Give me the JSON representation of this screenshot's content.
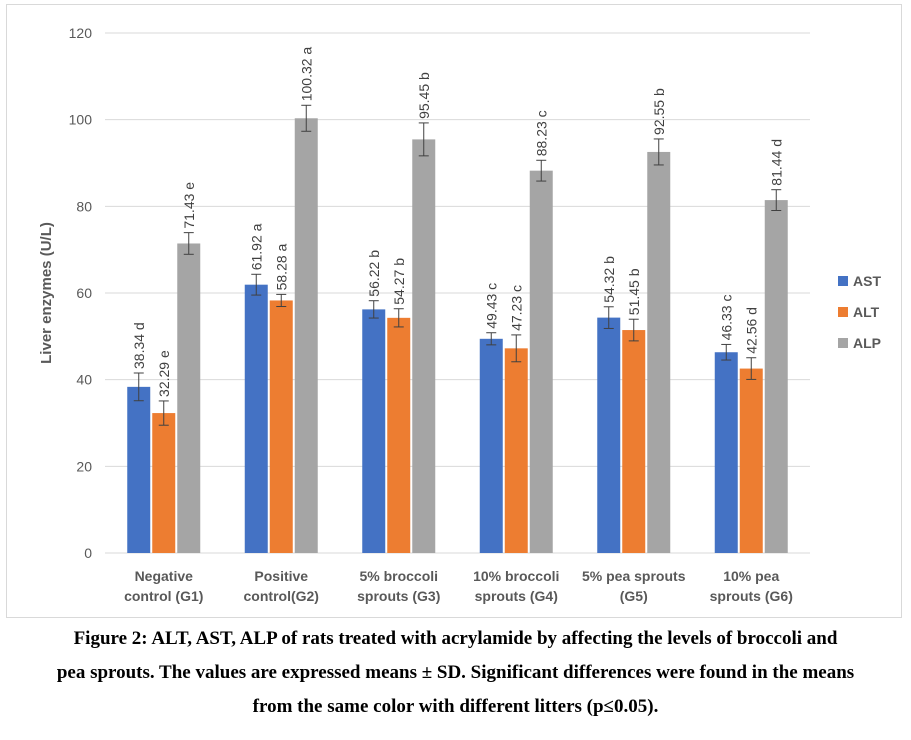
{
  "chart_data": {
    "type": "bar",
    "ylabel": "Liver enzymes (U/L)",
    "xlabel": "",
    "ylim": [
      0,
      120
    ],
    "yticks": [
      0,
      20,
      40,
      60,
      80,
      100,
      120
    ],
    "grid": true,
    "legend_position": "right",
    "categories": [
      [
        "Negative",
        "control (G1)"
      ],
      [
        "Positive",
        "control(G2)"
      ],
      [
        "5% broccoli",
        "sprouts (G3)"
      ],
      [
        "10% broccoli",
        "sprouts (G4)"
      ],
      [
        "5% pea sprouts",
        "(G5)"
      ],
      [
        "10% pea",
        "sprouts (G6)"
      ]
    ],
    "series": [
      {
        "name": "AST",
        "color": "#4472c4",
        "values": [
          38.34,
          61.92,
          56.22,
          49.43,
          54.32,
          46.33
        ],
        "errors": [
          3.2,
          2.4,
          2.0,
          1.4,
          2.5,
          1.8
        ],
        "labels": [
          "38.34 d",
          "61.92 a",
          "56.22 b",
          "49.43 c",
          "54.32 b",
          "46.33 c"
        ]
      },
      {
        "name": "ALT",
        "color": "#ed7d31",
        "values": [
          32.29,
          58.28,
          54.27,
          47.23,
          51.45,
          42.56
        ],
        "errors": [
          2.8,
          1.4,
          2.1,
          3.1,
          2.5,
          2.5
        ],
        "labels": [
          "32.29 e",
          "58.28 a",
          "54.27 b",
          "47.23 c",
          "51.45 b",
          "42.56 d"
        ]
      },
      {
        "name": "ALP",
        "color": "#a5a5a5",
        "values": [
          71.43,
          100.32,
          95.45,
          88.23,
          92.55,
          81.44
        ],
        "errors": [
          2.5,
          3.0,
          3.8,
          2.4,
          3.0,
          2.4
        ],
        "labels": [
          "71.43 e",
          "100.32 a",
          "95.45 b",
          "88.23 c",
          "92.55 b",
          "81.44 d"
        ]
      }
    ]
  },
  "caption": {
    "line1": "Figure 2: ALT, AST, ALP of rats treated with acrylamide by affecting the levels of broccoli and",
    "line2": "pea sprouts. The values are expressed means ± SD. Significant differences were found in the means",
    "line3": "from the same color with different litters (p≤0.05)."
  }
}
